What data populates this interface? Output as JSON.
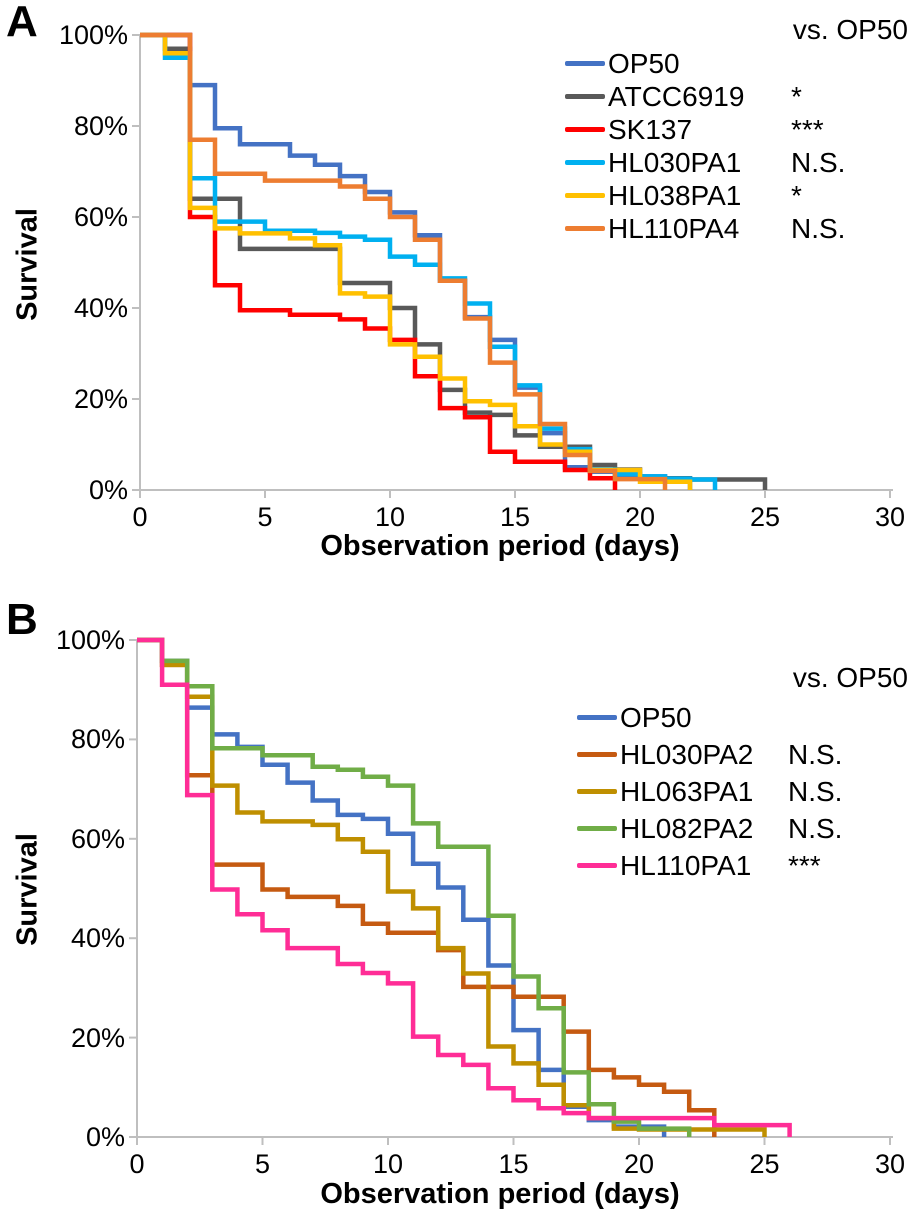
{
  "figure": {
    "panel_a_letter": "A",
    "panel_b_letter": "B"
  },
  "chart_data": [
    {
      "type": "line",
      "subtype": "kaplan-meier-step-survival",
      "panel": "A",
      "comparison_header": "vs. OP50",
      "xlabel": "Observation period (days)",
      "ylabel": "Survival",
      "xlim": [
        0,
        30
      ],
      "ylim_percent": [
        0,
        100
      ],
      "grid": false,
      "legend_position": "top-right-inside",
      "axis_color": "#bfbfbf",
      "x_ticks": [
        0,
        5,
        10,
        15,
        20,
        25,
        30
      ],
      "x_tick_labels": [
        "0",
        "5",
        "10",
        "15",
        "20",
        "25",
        "30"
      ],
      "y_ticks_percent": [
        100,
        80,
        60,
        40,
        20,
        0
      ],
      "y_tick_labels": [
        "100%",
        "80%",
        "60%",
        "40%",
        "20%",
        "0%"
      ],
      "x_is_day_index": true,
      "series": [
        {
          "name": "OP50",
          "significance_vs_OP50": "",
          "color": "#4472c4",
          "values_percent_by_day": [
            100,
            100,
            89,
            79.5,
            76,
            76,
            73.5,
            71.5,
            69,
            65.5,
            61,
            56,
            46,
            38,
            33,
            22.5,
            12.5,
            5,
            4,
            3,
            3,
            2,
            0
          ]
        },
        {
          "name": "ATCC6919",
          "significance_vs_OP50": "*",
          "color": "#595959",
          "values_percent_by_day": [
            100,
            97,
            64,
            64,
            53,
            53,
            53,
            53,
            45.5,
            45.5,
            40,
            32,
            22,
            17,
            16.5,
            12,
            9.5,
            9.5,
            5.5,
            4.5,
            2.6,
            2.6,
            2.3,
            2.3,
            2.3,
            0
          ]
        },
        {
          "name": "SK137",
          "significance_vs_OP50": "***",
          "color": "#ff0000",
          "values_percent_by_day": [
            100,
            100,
            60,
            45,
            39.5,
            39.5,
            38.5,
            38.5,
            37.5,
            35.5,
            33,
            25,
            18,
            16,
            8.4,
            6.2,
            6.2,
            4.4,
            2.6,
            0
          ]
        },
        {
          "name": "HL030PA1",
          "significance_vs_OP50": "N.S.",
          "color": "#00b0f0",
          "values_percent_by_day": [
            100,
            95,
            68.5,
            59,
            59,
            57,
            57,
            56.5,
            55.7,
            55,
            51.3,
            49.5,
            46.5,
            41,
            31.5,
            23,
            13.5,
            9,
            4.5,
            3.5,
            3,
            2.5,
            2.3,
            0
          ]
        },
        {
          "name": "HL038PA1",
          "significance_vs_OP50": "*",
          "color": "#ffc000",
          "values_percent_by_day": [
            100,
            96,
            62,
            57.5,
            56.4,
            56.4,
            55.3,
            53.8,
            43.2,
            42.5,
            32,
            29.3,
            24.5,
            19.5,
            18.7,
            14,
            10,
            8.4,
            4.4,
            4.4,
            1.8,
            1.8,
            0
          ]
        },
        {
          "name": "HL110PA4",
          "significance_vs_OP50": "N.S.",
          "color": "#ed7d31",
          "values_percent_by_day": [
            100,
            100,
            77,
            69.5,
            69.5,
            68,
            68,
            68,
            66.7,
            64,
            60,
            55,
            46,
            37.7,
            28,
            21,
            14.5,
            7.7,
            4.2,
            2.4,
            2.4,
            0
          ]
        }
      ]
    },
    {
      "type": "line",
      "subtype": "kaplan-meier-step-survival",
      "panel": "B",
      "comparison_header": "vs. OP50",
      "xlabel": "Observation period (days)",
      "ylabel": "Survival",
      "xlim": [
        0,
        30
      ],
      "ylim_percent": [
        0,
        100
      ],
      "grid": false,
      "legend_position": "top-right-inside",
      "axis_color": "#bfbfbf",
      "x_ticks": [
        0,
        5,
        10,
        15,
        20,
        25,
        30
      ],
      "x_tick_labels": [
        "0",
        "5",
        "10",
        "15",
        "20",
        "25",
        "30"
      ],
      "y_ticks_percent": [
        100,
        80,
        60,
        40,
        20,
        0
      ],
      "y_tick_labels": [
        "100%",
        "80%",
        "60%",
        "40%",
        "20%",
        "0%"
      ],
      "x_is_day_index": true,
      "series": [
        {
          "name": "OP50",
          "significance_vs_OP50": "",
          "color": "#4472c4",
          "values_percent_by_day": [
            100,
            95.8,
            86.4,
            81,
            78.5,
            74.9,
            71.3,
            67.7,
            64.8,
            64,
            61,
            55,
            50.2,
            43.7,
            34.5,
            21.5,
            13.5,
            6.1,
            3.4,
            2.1,
            2.1,
            0
          ]
        },
        {
          "name": "HL030PA2",
          "significance_vs_OP50": "N.S.",
          "color": "#c55a11",
          "values_percent_by_day": [
            100,
            95,
            72.8,
            54.8,
            54.8,
            49.8,
            48.3,
            48.3,
            46.5,
            42.9,
            41.1,
            41.1,
            37.6,
            30.2,
            30.2,
            28.2,
            28.2,
            21.2,
            13.5,
            12,
            10.5,
            9.1,
            5.4,
            0
          ]
        },
        {
          "name": "HL063PA1",
          "significance_vs_OP50": "N.S.",
          "color": "#bf8f00",
          "values_percent_by_day": [
            100,
            95,
            88.6,
            70.7,
            65.3,
            63.5,
            63.5,
            62.8,
            59.9,
            57.4,
            49.4,
            46,
            38,
            32.9,
            18.2,
            14.8,
            10.5,
            6.4,
            3.8,
            1.7,
            1.5,
            1.5,
            1.5,
            1.5,
            1.5,
            0
          ]
        },
        {
          "name": "HL082PA2",
          "significance_vs_OP50": "N.S.",
          "color": "#70ad47",
          "values_percent_by_day": [
            100,
            95.8,
            90.7,
            78.2,
            78.2,
            76.8,
            76.8,
            74.5,
            73.9,
            72.5,
            70.7,
            63.1,
            58.4,
            58.4,
            44.5,
            32.3,
            25.9,
            13,
            6.6,
            3.1,
            1.7,
            1.7,
            0
          ]
        },
        {
          "name": "HL110PA1",
          "significance_vs_OP50": "***",
          "color": "#ff2d96",
          "values_percent_by_day": [
            100,
            91,
            68.8,
            49.8,
            44.8,
            41.6,
            38,
            38,
            34.8,
            33,
            30.9,
            20.2,
            16.5,
            14.5,
            9.8,
            7.4,
            5.8,
            4.8,
            3.8,
            3.8,
            3.8,
            3.8,
            3.8,
            2.4,
            2.4,
            2.4,
            0
          ]
        }
      ]
    }
  ],
  "layout_note": "two stacked survival panels"
}
